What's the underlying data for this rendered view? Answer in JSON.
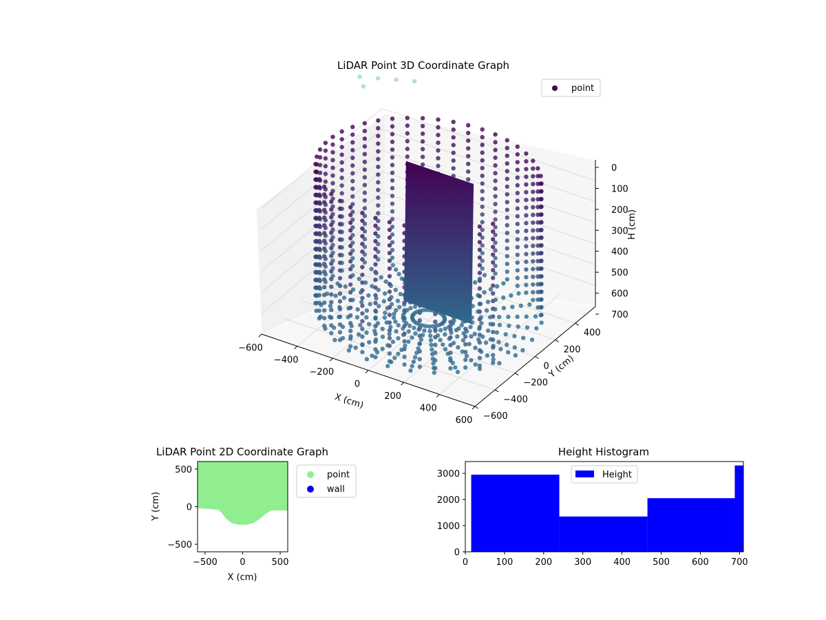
{
  "chart_data": [
    {
      "type": "scatter3d",
      "title": "LiDAR Point 3D Coordinate Graph",
      "xlabel": "X (cm)",
      "ylabel": "Y (cm)",
      "zlabel": "H (cm)",
      "x_ticks": [
        "−600",
        "−400",
        "−200",
        "0",
        "200",
        "400",
        "600"
      ],
      "y_ticks": [
        "−600",
        "−400",
        "−200",
        "0",
        "200",
        "400"
      ],
      "z_ticks": [
        "0",
        "100",
        "200",
        "300",
        "400",
        "500",
        "600",
        "700"
      ],
      "xlim": [
        -600,
        600
      ],
      "ylim": [
        -600,
        600
      ],
      "zlim": [
        0,
        700
      ],
      "legend": {
        "entries": [
          "point"
        ],
        "placement": "top-right"
      },
      "colormap": "viridis",
      "colors": {
        "high": "#440154",
        "mid": "#3b5a8c",
        "low": "#2f6a8e",
        "outlier": "#9fdac7"
      }
    },
    {
      "type": "scatter",
      "title": "LiDAR Point 2D Coordinate Graph",
      "xlabel": "X (cm)",
      "ylabel": "Y (cm)",
      "x_ticks": [
        -500,
        0,
        500
      ],
      "y_ticks": [
        -500,
        0,
        500
      ],
      "xlim": [
        -600,
        600
      ],
      "ylim": [
        -600,
        600
      ],
      "series": [
        {
          "name": "point",
          "color": "#90ee90",
          "boundary": [
            [
              -600,
              -20
            ],
            [
              -450,
              -30
            ],
            [
              -330,
              -40
            ],
            [
              -280,
              -80
            ],
            [
              -220,
              -160
            ],
            [
              -150,
              -215
            ],
            [
              -60,
              -240
            ],
            [
              60,
              -240
            ],
            [
              150,
              -215
            ],
            [
              230,
              -160
            ],
            [
              300,
              -100
            ],
            [
              380,
              -50
            ],
            [
              460,
              -50
            ],
            [
              600,
              -50
            ]
          ]
        },
        {
          "name": "wall",
          "color": "#0000ff",
          "boundary": []
        }
      ],
      "legend": {
        "placement": "right-outside"
      }
    },
    {
      "type": "bar",
      "title": "Height Histogram",
      "x_ticks": [
        0,
        100,
        200,
        300,
        400,
        500,
        600,
        700
      ],
      "y_ticks": [
        0,
        1000,
        2000,
        3000
      ],
      "xlim": [
        0,
        710
      ],
      "ylim": [
        0,
        3450
      ],
      "bins": [
        {
          "x0": 15,
          "x1": 240,
          "count": 2950
        },
        {
          "x0": 240,
          "x1": 465,
          "count": 1350
        },
        {
          "x0": 465,
          "x1": 688,
          "count": 2050
        },
        {
          "x0": 688,
          "x1": 710,
          "count": 3300
        }
      ],
      "series": [
        {
          "name": "Height",
          "color": "#0000ff"
        }
      ],
      "legend": {
        "placement": "top-center"
      }
    }
  ]
}
